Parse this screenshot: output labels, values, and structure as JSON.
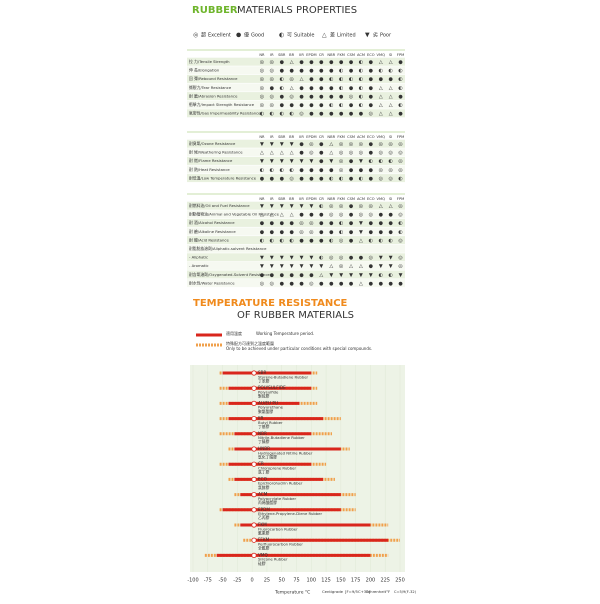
{
  "header": {
    "title_accent": "RUBBER",
    "title_rest": "MATERIALS PROPERTIES"
  },
  "legend": [
    {
      "symbol": "◎",
      "zh": "超",
      "en": "Excellent"
    },
    {
      "symbol": "●",
      "zh": "優",
      "en": "Good"
    },
    {
      "symbol": "◐",
      "zh": "可",
      "en": "Suitable"
    },
    {
      "symbol": "△",
      "zh": "差",
      "en": "Limited"
    },
    {
      "symbol": "▼",
      "zh": "劣",
      "en": "Poor"
    }
  ],
  "columns": [
    "NR",
    "IR",
    "SBR",
    "BR",
    "IIR",
    "EPDM",
    "CR",
    "NBR",
    "FKM",
    "CSM",
    "ACM",
    "ECO",
    "VMQ",
    "SI",
    "FPM"
  ],
  "tables": [
    {
      "rows": [
        {
          "label": "拉 力/Tensile Strength",
          "cells": [
            "◎",
            "◎",
            "●",
            "△",
            "●",
            "●",
            "●",
            "●",
            "●",
            "●",
            "◐",
            "●",
            "△",
            "△",
            "●"
          ]
        },
        {
          "label": "伸 長/Elongation",
          "cells": [
            "◎",
            "◎",
            "●",
            "●",
            "●",
            "●",
            "●",
            "●",
            "◐",
            "●",
            "◐",
            "●",
            "◐",
            "◐",
            "◐"
          ]
        },
        {
          "label": "回 彈/Rebound Resistance",
          "cells": [
            "◎",
            "◎",
            "◐",
            "◎",
            "△",
            "●",
            "●",
            "◐",
            "◐",
            "◐",
            "◐",
            "●",
            "●",
            "●",
            "◐"
          ]
        },
        {
          "label": "撕裂力/Tear Resistance",
          "cells": [
            "◎",
            "●",
            "◐",
            "△",
            "●",
            "●",
            "●",
            "●",
            "◐",
            "●",
            "◐",
            "●",
            "△",
            "△",
            "◐"
          ]
        },
        {
          "label": "耐 磨/Abrasion Resistance",
          "cells": [
            "◎",
            "◎",
            "●",
            "◎",
            "●",
            "●",
            "●",
            "●",
            "●",
            "◎",
            "◐",
            "●",
            "△",
            "△",
            "●"
          ]
        },
        {
          "label": "衝擊力/Impact Strength Resistance",
          "cells": [
            "◎",
            "◎",
            "●",
            "●",
            "●",
            "●",
            "●",
            "◐",
            "◐",
            "●",
            "◐",
            "●",
            "△",
            "△",
            "◐"
          ]
        },
        {
          "label": "氣密性/Gas Impermeability Resistance",
          "cells": [
            "◐",
            "◐",
            "◐",
            "◐",
            "◎",
            "●",
            "●",
            "●",
            "●",
            "●",
            "●",
            "◎",
            "△",
            "△",
            "●"
          ]
        }
      ]
    },
    {
      "rows": [
        {
          "label": "耐臭氧/Ozone Resistance",
          "cells": [
            "▼",
            "▼",
            "▼",
            "▼",
            "●",
            "◎",
            "●",
            "△",
            "◎",
            "◎",
            "◎",
            "●",
            "◎",
            "◎",
            "◎"
          ]
        },
        {
          "label": "耐 候/Weathering Resistance",
          "cells": [
            "△",
            "△",
            "△",
            "△",
            "●",
            "◎",
            "●",
            "△",
            "◎",
            "◎",
            "◎",
            "●",
            "◎",
            "◎",
            "◎"
          ]
        },
        {
          "label": "耐 燃/Flame Resistance",
          "cells": [
            "▼",
            "▼",
            "▼",
            "▼",
            "▼",
            "▼",
            "●",
            "▼",
            "◎",
            "●",
            "▼",
            "◐",
            "◐",
            "◐",
            "◎"
          ]
        },
        {
          "label": "耐 熱/Heat Resistance",
          "cells": [
            "◐",
            "◐",
            "◐",
            "◐",
            "●",
            "●",
            "●",
            "●",
            "◎",
            "●",
            "●",
            "●",
            "◎",
            "◎",
            "◎"
          ]
        },
        {
          "label": "耐低溫/Low Temperature Resistance",
          "cells": [
            "●",
            "●",
            "●",
            "◎",
            "●",
            "●",
            "●",
            "◐",
            "◐",
            "●",
            "◐",
            "●",
            "◎",
            "◎",
            "◐"
          ]
        }
      ]
    },
    {
      "rows": [
        {
          "label": "耐燃料油/Oil and Fuel Resistance",
          "cells": [
            "▼",
            "▼",
            "▼",
            "▼",
            "▼",
            "▼",
            "◐",
            "◎",
            "◎",
            "●",
            "◎",
            "◎",
            "△",
            "△",
            "◎"
          ]
        },
        {
          "label": "耐動植物油/Animal and Vegetable Oil Resistance",
          "cells": [
            "△",
            "△",
            "△",
            "△",
            "●",
            "●",
            "●",
            "◎",
            "◎",
            "●",
            "◎",
            "◎",
            "●",
            "●",
            "◎"
          ]
        },
        {
          "label": "耐 酒/Alcohol Resistance",
          "cells": [
            "●",
            "●",
            "●",
            "●",
            "◎",
            "◎",
            "●",
            "●",
            "◐",
            "●",
            "▼",
            "●",
            "●",
            "●",
            "◐"
          ]
        },
        {
          "label": "耐 鹼/Alkaline Resistance",
          "cells": [
            "●",
            "●",
            "●",
            "●",
            "◎",
            "◎",
            "●",
            "●",
            "◐",
            "●",
            "▼",
            "●",
            "●",
            "●",
            "◐"
          ]
        },
        {
          "label": "耐 酸/Acid Resistance",
          "cells": [
            "◐",
            "◐",
            "◐",
            "◐",
            "●",
            "●",
            "●",
            "◐",
            "◎",
            "●",
            "△",
            "◐",
            "◐",
            "◐",
            "◎"
          ]
        },
        {
          "label": "耐脂肪族溶劑/Aliphatic-solvent Resistance"
        },
        {
          "label": "- Aliphatic",
          "cells": [
            "▼",
            "▼",
            "▼",
            "▼",
            "▼",
            "▼",
            "◐",
            "◎",
            "◎",
            "●",
            "●",
            "◎",
            "▼",
            "▼",
            "◎"
          ]
        },
        {
          "label": "- Aromatic",
          "cells": [
            "▼",
            "▼",
            "▼",
            "▼",
            "▼",
            "▼",
            "▼",
            "△",
            "◎",
            "△",
            "△",
            "●",
            "▼",
            "▼",
            "◎"
          ]
        },
        {
          "label": "耐含氧溶劑/Oxygenated-Solvent Resistance",
          "cells": [
            "●",
            "●",
            "●",
            "●",
            "●",
            "●",
            "△",
            "▼",
            "▼",
            "▼",
            "▼",
            "▼",
            "◐",
            "◐",
            "▼"
          ]
        },
        {
          "label": "耐水性/Water Resistance",
          "cells": [
            "◎",
            "◎",
            "●",
            "●",
            "●",
            "◎",
            "●",
            "●",
            "●",
            "●",
            "△",
            "●",
            "●",
            "●",
            "●"
          ]
        }
      ]
    }
  ],
  "chart_data": {
    "type": "range",
    "title_accent": "TEMPERATURE RESISTANCE",
    "title_rest": "OF RUBBER MATERIALS",
    "categories": [
      "SBR",
      "POLYSULFIDE",
      "AU/EU PU",
      "IIR",
      "NBR",
      "HNBR",
      "CR",
      "ECO",
      "ACM",
      "EPDM",
      "FKM",
      "FFKM",
      "VMQ"
    ],
    "category_names": [
      "Styrene-Butadiene Rubber",
      "Polysulfide",
      "Polyurethane",
      "Butyl Rubber",
      "Nitrile-Butadiene Rubber",
      "Hydrogenated Nitrile Rubber",
      "Chloroprene Rubber",
      "Epichlorohydrin Rubber",
      "Polyacrylate Rubber",
      "Ethylene-Propylene-Diene Rubber",
      "Fluorocarbon Rubber",
      "Perfluorocarbon Rubber",
      "Silicone Rubber"
    ],
    "category_names_zh": [
      "丁苯膠",
      "聚硫膠",
      "聚氨酯膠",
      "丁基膠",
      "丁腈膠",
      "氫化丁腈膠",
      "氯丁膠",
      "氯醇膠",
      "丙烯酸酯膠",
      "乙丙膠",
      "氟素膠",
      "全氟膠",
      "硅膠"
    ],
    "series": [
      {
        "name": "Working Temperature period.",
        "name_zh": "適用溫度",
        "color": "#d9261c",
        "low": [
          -50,
          -40,
          -40,
          -40,
          -30,
          -30,
          -40,
          -30,
          -20,
          -50,
          -20,
          0,
          -60
        ],
        "high": [
          100,
          100,
          80,
          120,
          100,
          150,
          100,
          120,
          150,
          150,
          200,
          230,
          200
        ]
      },
      {
        "name": "Only to be achieved under particular conditions with special compounds.",
        "name_zh": "特殊配方可達到之溫度範圍",
        "color": "#f0a04b",
        "low": [
          -55,
          -55,
          -55,
          -55,
          -55,
          -40,
          -55,
          -40,
          -30,
          -55,
          -30,
          -15,
          -80
        ],
        "high": [
          110,
          110,
          110,
          150,
          135,
          165,
          125,
          140,
          175,
          175,
          230,
          250,
          230
        ]
      }
    ],
    "xlim": [
      -100,
      250
    ],
    "xticks": [
      -100,
      -75,
      -50,
      -25,
      0,
      25,
      50,
      75,
      100,
      125,
      150,
      175,
      200,
      225,
      250
    ],
    "xlabel": "Temperature °C",
    "unit_c": "Centigrade",
    "formula_f": "[F=9/5C+32]",
    "unit_f": "Fahrenheit°F",
    "formula_c": "C=5/9(F-32)"
  }
}
